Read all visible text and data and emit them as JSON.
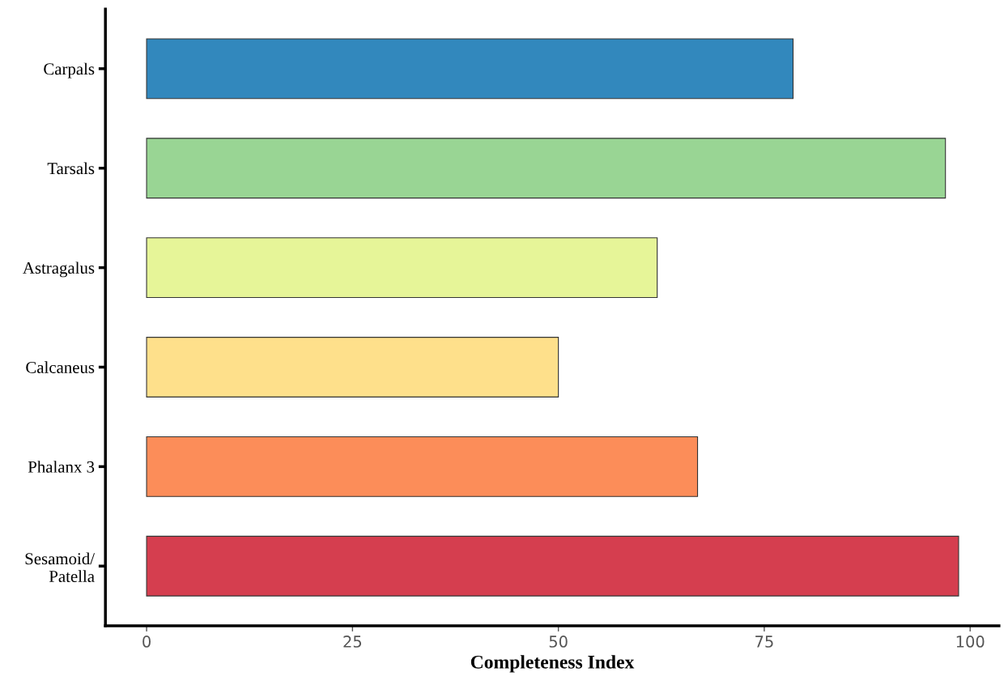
{
  "chart_data": {
    "type": "bar",
    "orientation": "horizontal",
    "xlabel": "Completeness Index",
    "categories": [
      "Carpals",
      "Tarsals",
      "Astragalus",
      "Calcaneus",
      "Phalanx 3",
      "Sesamoid/\nPatella"
    ],
    "values": [
      78.5,
      97.0,
      62.0,
      50.0,
      66.9,
      98.6
    ],
    "colors": [
      "#3288bd",
      "#99d594",
      "#e6f598",
      "#fee08b",
      "#fc8d59",
      "#d53e4f"
    ],
    "xlim": [
      -5,
      103.5
    ],
    "xticks": [
      0,
      25,
      50,
      75,
      100
    ],
    "grid": false,
    "legend": false
  }
}
